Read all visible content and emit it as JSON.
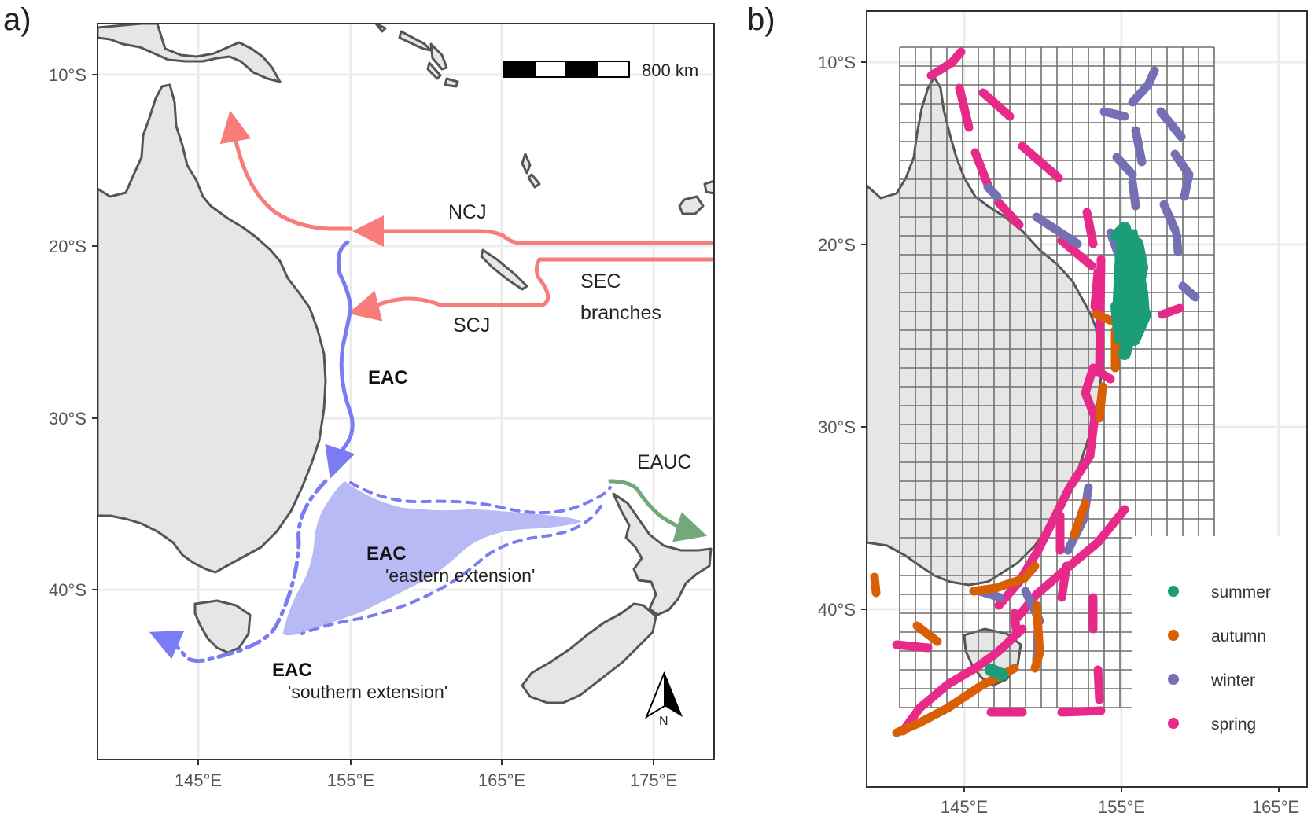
{
  "panels": {
    "a": {
      "label": "a)",
      "lat_ticks": [
        "10°S",
        "20°S",
        "30°S",
        "40°S"
      ],
      "lon_ticks": [
        "145°E",
        "155°E",
        "165°E",
        "175°E"
      ],
      "scale_bar": "800 km",
      "north_arrow": "N",
      "labels": {
        "ncj": "NCJ",
        "scj": "SCJ",
        "sec_line1": "SEC",
        "sec_line2": "branches",
        "eac_main": "EAC",
        "eauc": "EAUC",
        "eac_east": "EAC",
        "east_ext": "'eastern extension'",
        "eac_south": "EAC",
        "south_ext": "'southern extension'"
      },
      "colors": {
        "sec": "#f87c7a",
        "eac": "#7b7cf4",
        "eauc": "#72a87a",
        "extension_fill": "#b8baf6"
      }
    },
    "b": {
      "label": "b)",
      "lat_ticks": [
        "10°S",
        "20°S",
        "30°S",
        "40°S"
      ],
      "lon_ticks": [
        "145°E",
        "155°E",
        "165°E"
      ],
      "legend": [
        {
          "label": "summer",
          "color": "#1b9e77"
        },
        {
          "label": "autumn",
          "color": "#d95f02"
        },
        {
          "label": "winter",
          "color": "#7570b3"
        },
        {
          "label": "spring",
          "color": "#e7298a"
        }
      ]
    }
  }
}
